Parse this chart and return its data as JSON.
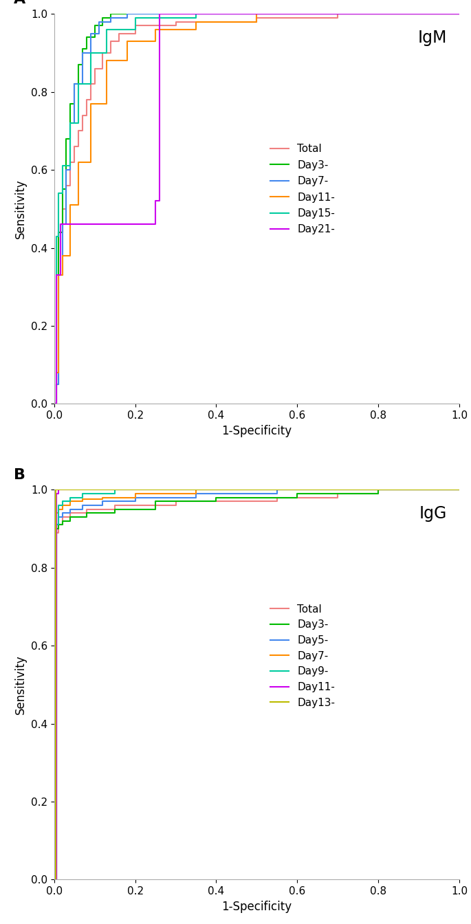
{
  "panel_A_label": "IgM",
  "panel_B_label": "IgG",
  "panel_A_curves": [
    {
      "label": "Total",
      "color": "#F08080",
      "x": [
        0.0,
        0.005,
        0.005,
        0.01,
        0.01,
        0.02,
        0.02,
        0.03,
        0.03,
        0.04,
        0.04,
        0.05,
        0.05,
        0.06,
        0.06,
        0.07,
        0.07,
        0.08,
        0.08,
        0.09,
        0.09,
        0.1,
        0.1,
        0.12,
        0.12,
        0.14,
        0.14,
        0.16,
        0.16,
        0.2,
        0.2,
        0.3,
        0.3,
        0.5,
        0.5,
        0.7,
        0.7,
        1.0
      ],
      "y": [
        0.0,
        0.0,
        0.05,
        0.05,
        0.44,
        0.44,
        0.5,
        0.5,
        0.56,
        0.56,
        0.62,
        0.62,
        0.66,
        0.66,
        0.7,
        0.7,
        0.74,
        0.74,
        0.78,
        0.78,
        0.82,
        0.82,
        0.86,
        0.86,
        0.9,
        0.9,
        0.93,
        0.93,
        0.95,
        0.95,
        0.97,
        0.97,
        0.98,
        0.98,
        0.99,
        0.99,
        1.0,
        1.0
      ]
    },
    {
      "label": "Day3-",
      "color": "#00BB00",
      "x": [
        0.0,
        0.005,
        0.005,
        0.01,
        0.01,
        0.02,
        0.02,
        0.03,
        0.03,
        0.04,
        0.04,
        0.05,
        0.05,
        0.06,
        0.06,
        0.07,
        0.07,
        0.08,
        0.08,
        0.1,
        0.1,
        0.12,
        0.12,
        0.14,
        0.14,
        0.2,
        0.2,
        0.4,
        0.4,
        1.0
      ],
      "y": [
        0.0,
        0.0,
        0.05,
        0.05,
        0.44,
        0.44,
        0.55,
        0.55,
        0.68,
        0.68,
        0.77,
        0.77,
        0.82,
        0.82,
        0.87,
        0.87,
        0.91,
        0.91,
        0.94,
        0.94,
        0.97,
        0.97,
        0.99,
        0.99,
        1.0,
        1.0,
        1.0,
        1.0,
        1.0,
        1.0
      ]
    },
    {
      "label": "Day7-",
      "color": "#4488EE",
      "x": [
        0.0,
        0.005,
        0.005,
        0.01,
        0.01,
        0.02,
        0.02,
        0.03,
        0.03,
        0.04,
        0.04,
        0.05,
        0.05,
        0.07,
        0.07,
        0.09,
        0.09,
        0.11,
        0.11,
        0.14,
        0.14,
        0.18,
        0.18,
        0.25,
        0.25,
        0.4,
        0.4,
        1.0
      ],
      "y": [
        0.0,
        0.0,
        0.05,
        0.05,
        0.33,
        0.33,
        0.46,
        0.46,
        0.6,
        0.6,
        0.72,
        0.72,
        0.82,
        0.82,
        0.9,
        0.9,
        0.95,
        0.95,
        0.98,
        0.98,
        0.99,
        0.99,
        1.0,
        1.0,
        1.0,
        1.0,
        1.0,
        1.0
      ]
    },
    {
      "label": "Day11-",
      "color": "#FF8C00",
      "x": [
        0.0,
        0.005,
        0.005,
        0.01,
        0.01,
        0.02,
        0.02,
        0.04,
        0.04,
        0.06,
        0.06,
        0.09,
        0.09,
        0.13,
        0.13,
        0.18,
        0.18,
        0.25,
        0.25,
        0.35,
        0.35,
        0.5,
        0.5,
        0.7,
        0.7,
        1.0
      ],
      "y": [
        0.0,
        0.0,
        0.08,
        0.08,
        0.33,
        0.33,
        0.38,
        0.38,
        0.51,
        0.51,
        0.62,
        0.62,
        0.77,
        0.77,
        0.88,
        0.88,
        0.93,
        0.93,
        0.96,
        0.96,
        0.98,
        0.98,
        1.0,
        1.0,
        1.0,
        1.0
      ]
    },
    {
      "label": "Day15-",
      "color": "#00CCA0",
      "x": [
        0.0,
        0.005,
        0.005,
        0.01,
        0.01,
        0.02,
        0.02,
        0.04,
        0.04,
        0.06,
        0.06,
        0.09,
        0.09,
        0.13,
        0.13,
        0.2,
        0.2,
        0.35,
        0.35,
        0.6,
        0.6,
        1.0
      ],
      "y": [
        0.0,
        0.0,
        0.43,
        0.43,
        0.54,
        0.54,
        0.61,
        0.61,
        0.72,
        0.72,
        0.82,
        0.82,
        0.9,
        0.9,
        0.96,
        0.96,
        0.99,
        0.99,
        1.0,
        1.0,
        1.0,
        1.0
      ]
    },
    {
      "label": "Day21-",
      "color": "#CC00EE",
      "x": [
        0.0,
        0.005,
        0.005,
        0.015,
        0.015,
        0.25,
        0.25,
        0.26,
        0.26,
        1.0
      ],
      "y": [
        0.0,
        0.0,
        0.33,
        0.33,
        0.46,
        0.46,
        0.52,
        0.52,
        1.0,
        1.0
      ]
    }
  ],
  "panel_B_curves": [
    {
      "label": "Total",
      "color": "#F08080",
      "x": [
        0.0,
        0.005,
        0.005,
        0.01,
        0.01,
        0.02,
        0.02,
        0.04,
        0.04,
        0.08,
        0.08,
        0.15,
        0.15,
        0.3,
        0.3,
        0.55,
        0.55,
        0.7,
        0.7,
        0.8,
        0.8,
        1.0
      ],
      "y": [
        0.0,
        0.0,
        0.89,
        0.89,
        0.91,
        0.91,
        0.93,
        0.93,
        0.94,
        0.94,
        0.95,
        0.95,
        0.96,
        0.96,
        0.97,
        0.97,
        0.98,
        0.98,
        0.99,
        0.99,
        1.0,
        1.0
      ]
    },
    {
      "label": "Day3-",
      "color": "#00BB00",
      "x": [
        0.0,
        0.005,
        0.005,
        0.01,
        0.01,
        0.02,
        0.02,
        0.04,
        0.04,
        0.08,
        0.08,
        0.15,
        0.15,
        0.25,
        0.25,
        0.4,
        0.4,
        0.6,
        0.6,
        0.8,
        0.8,
        1.0
      ],
      "y": [
        0.0,
        0.0,
        0.9,
        0.9,
        0.91,
        0.91,
        0.92,
        0.92,
        0.93,
        0.93,
        0.94,
        0.94,
        0.95,
        0.95,
        0.97,
        0.97,
        0.98,
        0.98,
        0.99,
        0.99,
        1.0,
        1.0
      ]
    },
    {
      "label": "Day5-",
      "color": "#4488EE",
      "x": [
        0.0,
        0.005,
        0.005,
        0.01,
        0.01,
        0.02,
        0.02,
        0.04,
        0.04,
        0.07,
        0.07,
        0.12,
        0.12,
        0.2,
        0.2,
        0.35,
        0.35,
        0.55,
        0.55,
        0.75,
        0.75,
        1.0
      ],
      "y": [
        0.0,
        0.0,
        0.91,
        0.91,
        0.93,
        0.93,
        0.94,
        0.94,
        0.95,
        0.95,
        0.96,
        0.96,
        0.97,
        0.97,
        0.98,
        0.98,
        0.99,
        0.99,
        1.0,
        1.0,
        1.0,
        1.0
      ]
    },
    {
      "label": "Day7-",
      "color": "#FF8C00",
      "x": [
        0.0,
        0.005,
        0.005,
        0.01,
        0.01,
        0.02,
        0.02,
        0.04,
        0.04,
        0.07,
        0.07,
        0.12,
        0.12,
        0.2,
        0.2,
        0.35,
        0.35,
        0.55,
        0.55,
        0.75,
        0.75,
        1.0
      ],
      "y": [
        0.0,
        0.0,
        0.94,
        0.94,
        0.95,
        0.95,
        0.96,
        0.96,
        0.97,
        0.97,
        0.975,
        0.975,
        0.98,
        0.98,
        0.99,
        0.99,
        1.0,
        1.0,
        1.0,
        1.0,
        1.0,
        1.0
      ]
    },
    {
      "label": "Day9-",
      "color": "#00CCA0",
      "x": [
        0.0,
        0.005,
        0.005,
        0.01,
        0.01,
        0.02,
        0.02,
        0.04,
        0.04,
        0.07,
        0.07,
        0.15,
        0.15,
        0.3,
        0.3,
        0.55,
        0.55,
        0.75,
        0.75,
        1.0
      ],
      "y": [
        0.0,
        0.0,
        0.91,
        0.91,
        0.96,
        0.96,
        0.97,
        0.97,
        0.98,
        0.98,
        0.99,
        0.99,
        1.0,
        1.0,
        1.0,
        1.0,
        1.0,
        1.0,
        1.0,
        1.0
      ]
    },
    {
      "label": "Day11-",
      "color": "#CC00EE",
      "x": [
        0.0,
        0.005,
        0.005,
        0.01,
        0.01,
        0.02,
        0.02,
        0.04,
        0.04,
        0.08,
        0.08,
        0.2,
        0.2,
        0.4,
        0.4,
        0.65,
        0.65,
        1.0
      ],
      "y": [
        0.0,
        0.0,
        0.99,
        0.99,
        1.0,
        1.0,
        1.0,
        1.0,
        1.0,
        1.0,
        1.0,
        1.0,
        1.0,
        1.0,
        1.0,
        1.0,
        1.0,
        1.0
      ]
    },
    {
      "label": "Day13-",
      "color": "#BBBB00",
      "x": [
        0.0,
        0.003,
        0.003,
        0.005,
        0.005,
        0.01,
        0.01,
        0.015,
        0.015,
        0.02,
        0.02,
        0.04,
        0.04,
        0.08,
        0.08,
        0.15,
        0.15,
        0.3,
        0.3,
        0.5,
        0.5,
        1.0
      ],
      "y": [
        0.0,
        0.0,
        1.0,
        1.0,
        1.0,
        1.0,
        1.0,
        1.0,
        1.0,
        1.0,
        1.0,
        1.0,
        1.0,
        1.0,
        1.0,
        1.0,
        1.0,
        1.0,
        1.0,
        1.0,
        1.0,
        1.0
      ]
    }
  ],
  "xlabel": "1-Specificity",
  "ylabel": "Sensitivity",
  "xlim": [
    0.0,
    1.0
  ],
  "ylim": [
    0.0,
    1.0
  ],
  "xticks": [
    0.0,
    0.2,
    0.4,
    0.6,
    0.8,
    1.0
  ],
  "yticks": [
    0.0,
    0.2,
    0.4,
    0.6,
    0.8,
    1.0
  ],
  "background_color": "#FFFFFF",
  "line_width": 1.5,
  "legend_fontsize": 11,
  "axis_fontsize": 12,
  "tick_fontsize": 11,
  "panel_label_fontsize": 16
}
